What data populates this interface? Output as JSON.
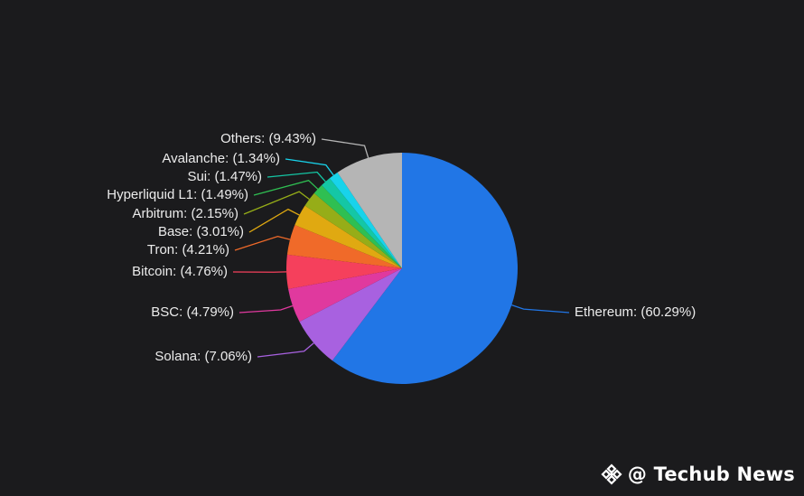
{
  "chart_data": {
    "type": "pie",
    "slices": [
      {
        "label": "Ethereum: (60.29%)",
        "value": 60.29,
        "color": "#2176e6"
      },
      {
        "label": "Solana: (7.06%)",
        "value": 7.06,
        "color": "#a861e0"
      },
      {
        "label": "BSC: (4.79%)",
        "value": 4.79,
        "color": "#e0399e"
      },
      {
        "label": "Bitcoin: (4.76%)",
        "value": 4.76,
        "color": "#f5405c"
      },
      {
        "label": "Tron: (4.21%)",
        "value": 4.21,
        "color": "#f06a29"
      },
      {
        "label": "Base: (3.01%)",
        "value": 3.01,
        "color": "#e0a911"
      },
      {
        "label": "Arbitrum: (2.15%)",
        "value": 2.15,
        "color": "#96ad18"
      },
      {
        "label": "Hyperliquid L1: (1.49%)",
        "value": 1.49,
        "color": "#2fbf52"
      },
      {
        "label": "Sui: (1.47%)",
        "value": 1.47,
        "color": "#14c7a5"
      },
      {
        "label": "Avalanche: (1.34%)",
        "value": 1.34,
        "color": "#18d3eb"
      },
      {
        "label": "Others: (9.43%)",
        "value": 9.43,
        "color": "#b5b5b5"
      }
    ]
  },
  "watermark": {
    "text": "@ Techub News",
    "icon": "techub-diamond-logo-icon"
  },
  "colors": {
    "background": "#1b1b1d",
    "label_text": "#ececec"
  }
}
